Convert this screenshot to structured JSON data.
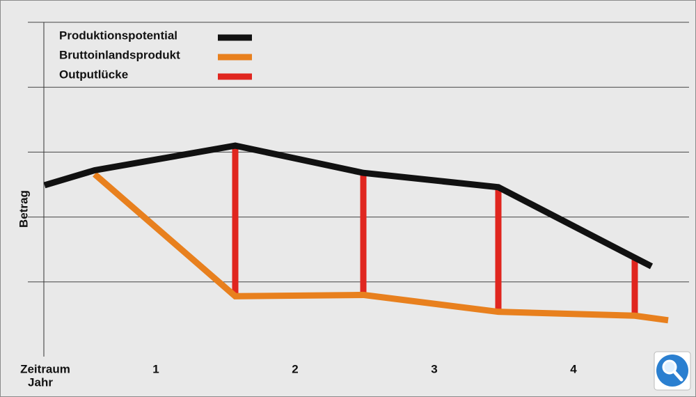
{
  "chart_data": {
    "type": "line",
    "ylabel": "Betrag",
    "xlabel": [
      "Zeitraum",
      "Jahr"
    ],
    "xlim": [
      0.2,
      4.85
    ],
    "xticks": [
      1,
      2,
      3,
      4
    ],
    "ylim": [
      0,
      5
    ],
    "yticks": [
      1,
      2,
      3,
      4,
      5
    ],
    "grid": true,
    "legend": "upper left",
    "series": [
      {
        "name": "Produktionspotential",
        "color": "#111111",
        "x": [
          0.2,
          0.56,
          1.57,
          2.49,
          3.46,
          4.56
        ],
        "values": [
          2.49,
          2.72,
          3.1,
          2.68,
          2.46,
          1.24
        ]
      },
      {
        "name": "Bruttoinlandsprodukt",
        "color": "#e8801e",
        "x": [
          0.56,
          1.57,
          2.49,
          3.46,
          4.44,
          4.68
        ],
        "values": [
          2.66,
          0.78,
          0.8,
          0.54,
          0.48,
          0.41
        ]
      },
      {
        "name": "Outputlücke",
        "color": "#e0261f",
        "x": [
          1.57,
          2.49,
          3.46,
          4.44
        ],
        "values": [
          2.32,
          1.88,
          1.92,
          0.86
        ]
      }
    ]
  }
}
